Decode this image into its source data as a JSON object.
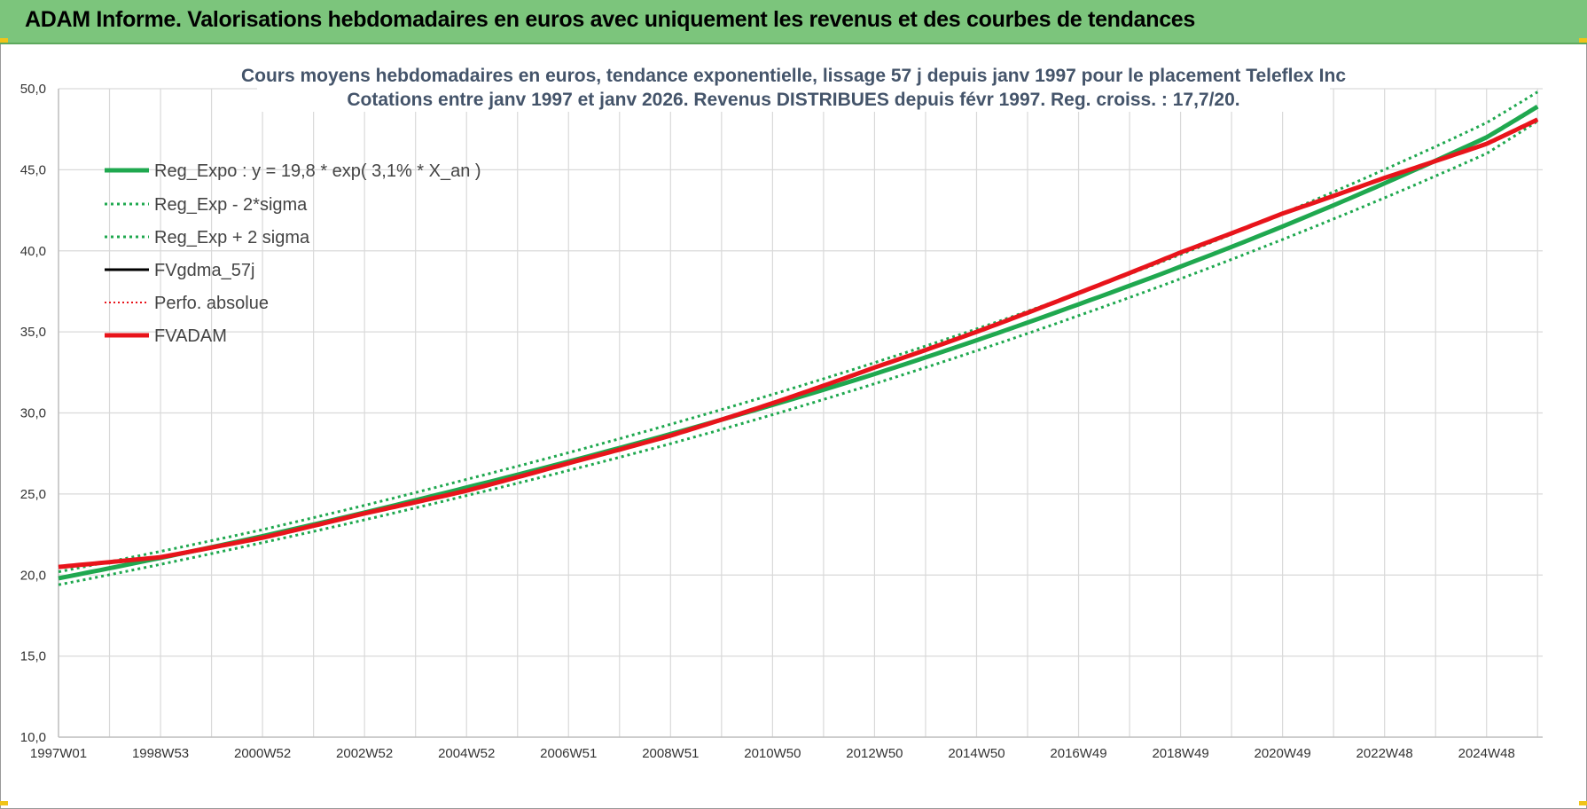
{
  "header": {
    "title": "ADAM Informe. Valorisations hebdomadaires en euros avec uniquement les revenus et des courbes de tendances"
  },
  "colors": {
    "banner": "#7cc57c",
    "reg_expo": "#1fa84f",
    "fvadam": "#e8141b",
    "fvgdma": "#000000",
    "perfo": "#e8141b",
    "title_text": "#44546a"
  },
  "chart_data": {
    "type": "line",
    "title": "Cours moyens hebdomadaires en euros, tendance exponentielle, lissage 57 j depuis janv 1997  pour le placement Teleflex Inc",
    "subtitle": "Cotations entre janv 1997 et janv 2026. Revenus DISTRIBUES depuis févr 1997. Reg. croiss. : 17,7/20.",
    "ylim": [
      10,
      50
    ],
    "y_ticks": [
      "10,0",
      "15,0",
      "20,0",
      "25,0",
      "30,0",
      "35,0",
      "40,0",
      "45,0",
      "50,0"
    ],
    "x_range_years": [
      1997.0,
      2026.1
    ],
    "x_tick_labels": [
      "1997W01",
      "1998W53",
      "2000W52",
      "2002W52",
      "2004W52",
      "2006W51",
      "2008W51",
      "2010W50",
      "2012W50",
      "2014W50",
      "2016W49",
      "2018W49",
      "2020W49",
      "2022W48",
      "2024W48"
    ],
    "x_tick_years": [
      1997.0,
      1999.0,
      2001.0,
      2003.0,
      2005.0,
      2007.0,
      2009.0,
      2011.0,
      2013.0,
      2015.0,
      2017.0,
      2019.0,
      2021.0,
      2023.0,
      2025.0
    ],
    "grid": true,
    "legend_position": "top-left",
    "series": [
      {
        "name": "Reg_Expo : y = 19,8 * exp( 3,1% *  X_an )",
        "style": "solid-thick",
        "color": "#1fa84f",
        "x": [
          1997.0,
          2001.0,
          2005.0,
          2009.0,
          2013.0,
          2017.0,
          2021.0,
          2025.0,
          2026.0
        ],
        "values": [
          19.8,
          22.4,
          25.4,
          28.7,
          32.4,
          36.7,
          41.5,
          47.0,
          48.9
        ]
      },
      {
        "name": "Reg_Exp - 2*sigma",
        "style": "dotted",
        "color": "#1fa84f",
        "x": [
          1997.0,
          2001.0,
          2005.0,
          2009.0,
          2013.0,
          2017.0,
          2021.0,
          2025.0,
          2026.0
        ],
        "values": [
          19.4,
          22.0,
          24.9,
          28.1,
          31.8,
          36.0,
          40.7,
          46.0,
          48.0
        ]
      },
      {
        "name": "Reg_Exp + 2 sigma",
        "style": "dotted",
        "color": "#1fa84f",
        "x": [
          1997.0,
          2001.0,
          2005.0,
          2009.0,
          2013.0,
          2017.0,
          2021.0,
          2025.0,
          2026.0
        ],
        "values": [
          20.2,
          22.8,
          25.9,
          29.3,
          33.1,
          37.4,
          42.3,
          47.9,
          49.8
        ]
      },
      {
        "name": "FVgdma_57j",
        "style": "solid",
        "color": "#000000",
        "x": [
          1997.0,
          1999.0,
          2001.0,
          2003.0,
          2005.0,
          2007.0,
          2009.0,
          2011.0,
          2013.0,
          2015.0,
          2017.0,
          2019.0,
          2021.0,
          2023.0,
          2025.0,
          2026.0
        ],
        "values": [
          20.5,
          21.1,
          22.3,
          23.8,
          25.2,
          26.9,
          28.6,
          30.6,
          32.8,
          35.0,
          37.4,
          39.9,
          42.3,
          44.5,
          46.6,
          48.1
        ]
      },
      {
        "name": "Perfo. absolue",
        "style": "dotted",
        "color": "#e8141b",
        "x": [
          1997.0,
          1999.0,
          2001.0,
          2003.0,
          2005.0,
          2007.0,
          2009.0,
          2011.0,
          2013.0,
          2015.0,
          2017.0,
          2019.0,
          2021.0,
          2023.0,
          2025.0,
          2026.0
        ],
        "values": [
          20.5,
          21.1,
          22.3,
          23.8,
          25.2,
          26.9,
          28.6,
          30.6,
          32.8,
          35.0,
          37.4,
          39.9,
          42.3,
          44.5,
          46.6,
          48.1
        ]
      },
      {
        "name": "FVADAM",
        "style": "solid-thick",
        "color": "#e8141b",
        "x": [
          1997.0,
          1999.0,
          2001.0,
          2003.0,
          2005.0,
          2007.0,
          2009.0,
          2011.0,
          2013.0,
          2015.0,
          2017.0,
          2019.0,
          2021.0,
          2023.0,
          2025.0,
          2026.0
        ],
        "values": [
          20.5,
          21.1,
          22.3,
          23.8,
          25.2,
          26.9,
          28.6,
          30.6,
          32.8,
          35.0,
          37.4,
          39.9,
          42.3,
          44.5,
          46.6,
          48.1
        ]
      }
    ]
  }
}
